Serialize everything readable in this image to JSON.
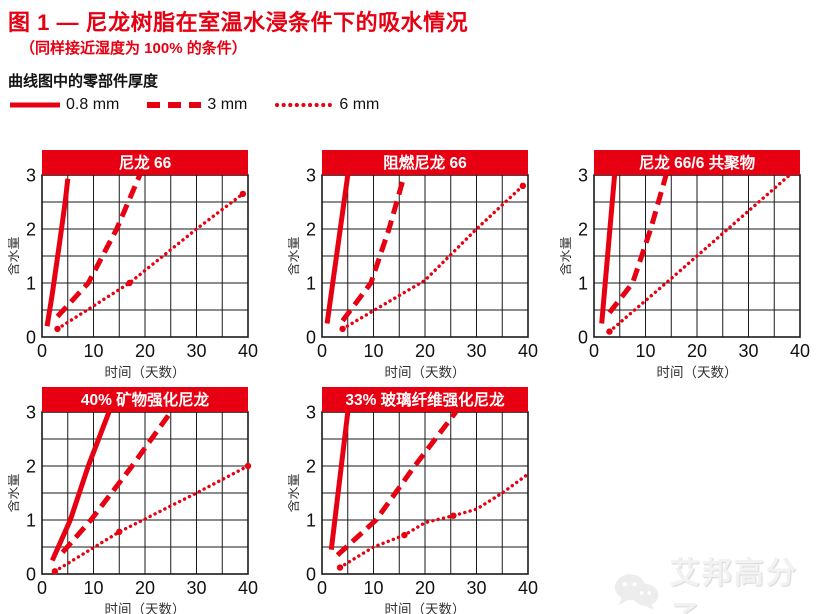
{
  "page": {
    "title": "图 1 — 尼龙树脂在室温水浸条件下的吸水情况",
    "subtitle": "（同样接近湿度为 100% 的条件）",
    "thickness_label": "曲线图中的零部件厚度",
    "watermark": "艾邦高分子"
  },
  "colors": {
    "accent": "#e60012",
    "grid": "#1a1a1a",
    "banner_text": "#ffffff",
    "watermark": "#efefef"
  },
  "legend": [
    {
      "label": "0.8 mm",
      "style": "solid"
    },
    {
      "label": "3 mm",
      "style": "dashed"
    },
    {
      "label": "6 mm",
      "style": "dotted"
    }
  ],
  "chart_data": [
    {
      "type": "line",
      "title": "尼龙 66",
      "xlabel": "时间（天数）",
      "ylabel": "含水量",
      "xlim": [
        0,
        40
      ],
      "ylim": [
        0,
        3
      ],
      "xticks": [
        0,
        10,
        20,
        30,
        40
      ],
      "yticks": [
        0,
        1,
        2,
        3
      ],
      "x_grid_step": 5,
      "y_grid_step": 0.5,
      "grid": true,
      "series": [
        {
          "name": "0.8 mm",
          "style": "solid",
          "points": [
            [
              1,
              0.2
            ],
            [
              2,
              0.8
            ],
            [
              3.5,
              1.8
            ],
            [
              4.5,
              2.5
            ],
            [
              5,
              2.93
            ]
          ]
        },
        {
          "name": "3 mm",
          "style": "dashed",
          "points": [
            [
              3,
              0.38
            ],
            [
              9,
              1.0
            ],
            [
              14.5,
              2.0
            ],
            [
              19,
              3.0
            ]
          ]
        },
        {
          "name": "6 mm",
          "style": "dotted",
          "points": [
            [
              3,
              0.15
            ],
            [
              17,
              1.0
            ],
            [
              30,
              2.0
            ],
            [
              39,
              2.65
            ]
          ],
          "markers": [
            [
              3,
              0.15
            ],
            [
              17,
              1.0
            ],
            [
              39,
              2.65
            ]
          ]
        }
      ]
    },
    {
      "type": "line",
      "title": "阻燃尼龙 66",
      "xlabel": "时间（天数）",
      "ylabel": "含水量",
      "xlim": [
        0,
        40
      ],
      "ylim": [
        0,
        3
      ],
      "xticks": [
        0,
        10,
        20,
        30,
        40
      ],
      "yticks": [
        0,
        1,
        2,
        3
      ],
      "x_grid_step": 5,
      "y_grid_step": 0.5,
      "grid": true,
      "series": [
        {
          "name": "0.8 mm",
          "style": "solid",
          "points": [
            [
              1,
              0.25
            ],
            [
              5,
              3.0
            ]
          ]
        },
        {
          "name": "3 mm",
          "style": "dashed",
          "points": [
            [
              4,
              0.3
            ],
            [
              9.5,
              1.0
            ],
            [
              13,
              2.0
            ],
            [
              16,
              3.0
            ]
          ]
        },
        {
          "name": "6 mm",
          "style": "dotted",
          "points": [
            [
              4,
              0.15
            ],
            [
              20,
              1.05
            ],
            [
              30,
              2.0
            ],
            [
              39,
              2.8
            ]
          ],
          "markers": [
            [
              4,
              0.15
            ],
            [
              39,
              2.8
            ]
          ]
        }
      ]
    },
    {
      "type": "line",
      "title": "尼龙 66/6 共聚物",
      "xlabel": "时间（天数）",
      "ylabel": "含水量",
      "xlim": [
        0,
        40
      ],
      "ylim": [
        0,
        3
      ],
      "xticks": [
        0,
        10,
        20,
        30,
        40
      ],
      "yticks": [
        0,
        1,
        2,
        3
      ],
      "x_grid_step": 5,
      "y_grid_step": 0.5,
      "grid": true,
      "series": [
        {
          "name": "0.8 mm",
          "style": "solid",
          "points": [
            [
              1.5,
              0.25
            ],
            [
              4,
              3.0
            ]
          ]
        },
        {
          "name": "3 mm",
          "style": "dashed",
          "points": [
            [
              3,
              0.45
            ],
            [
              7.5,
              1.0
            ],
            [
              11,
              2.0
            ],
            [
              14,
              3.0
            ]
          ]
        },
        {
          "name": "6 mm",
          "style": "dotted",
          "points": [
            [
              3,
              0.1
            ],
            [
              14,
              1.0
            ],
            [
              26,
              2.0
            ],
            [
              38,
              3.0
            ]
          ],
          "markers": [
            [
              3,
              0.1
            ]
          ]
        }
      ]
    },
    {
      "type": "line",
      "title": "40% 矿物强化尼龙",
      "xlabel": "时间（天数）",
      "ylabel": "含水量",
      "xlim": [
        0,
        40
      ],
      "ylim": [
        0,
        3
      ],
      "xticks": [
        0,
        10,
        20,
        30,
        40
      ],
      "yticks": [
        0,
        1,
        2,
        3
      ],
      "x_grid_step": 5,
      "y_grid_step": 0.5,
      "grid": true,
      "series": [
        {
          "name": "0.8 mm",
          "style": "solid",
          "points": [
            [
              2,
              0.25
            ],
            [
              5.5,
              1.0
            ],
            [
              9,
              2.0
            ],
            [
              13,
              3.0
            ]
          ]
        },
        {
          "name": "3 mm",
          "style": "dashed",
          "points": [
            [
              4,
              0.4
            ],
            [
              9.5,
              1.0
            ],
            [
              17.5,
              2.0
            ],
            [
              25,
              3.0
            ]
          ]
        },
        {
          "name": "6 mm",
          "style": "dotted",
          "points": [
            [
              2.5,
              0.05
            ],
            [
              15,
              0.78
            ],
            [
              30,
              1.5
            ],
            [
              40,
              2.0
            ]
          ],
          "markers": [
            [
              2.5,
              0.05
            ],
            [
              15,
              0.78
            ],
            [
              40,
              2.0
            ]
          ]
        }
      ]
    },
    {
      "type": "line",
      "title": "33% 玻璃纤维强化尼龙",
      "xlabel": "时间（天数）",
      "ylabel": "含水量",
      "xlim": [
        0,
        40
      ],
      "ylim": [
        0,
        3
      ],
      "xticks": [
        0,
        10,
        20,
        30,
        40
      ],
      "yticks": [
        0,
        1,
        2,
        3
      ],
      "x_grid_step": 5,
      "y_grid_step": 0.5,
      "grid": true,
      "series": [
        {
          "name": "0.8 mm",
          "style": "solid",
          "points": [
            [
              1.8,
              0.45
            ],
            [
              5,
              3.0
            ]
          ]
        },
        {
          "name": "3 mm",
          "style": "dashed",
          "points": [
            [
              3,
              0.35
            ],
            [
              10.5,
              1.0
            ],
            [
              18,
              2.0
            ],
            [
              26,
              3.0
            ]
          ]
        },
        {
          "name": "6 mm",
          "style": "dotted",
          "points": [
            [
              3.5,
              0.12
            ],
            [
              10,
              0.5
            ],
            [
              16,
              0.72
            ],
            [
              20,
              0.95
            ],
            [
              25.5,
              1.08
            ],
            [
              30,
              1.2
            ],
            [
              35,
              1.5
            ],
            [
              40,
              1.85
            ]
          ],
          "markers": [
            [
              3.5,
              0.12
            ],
            [
              16,
              0.72
            ],
            [
              25.5,
              1.08
            ]
          ]
        }
      ]
    }
  ]
}
